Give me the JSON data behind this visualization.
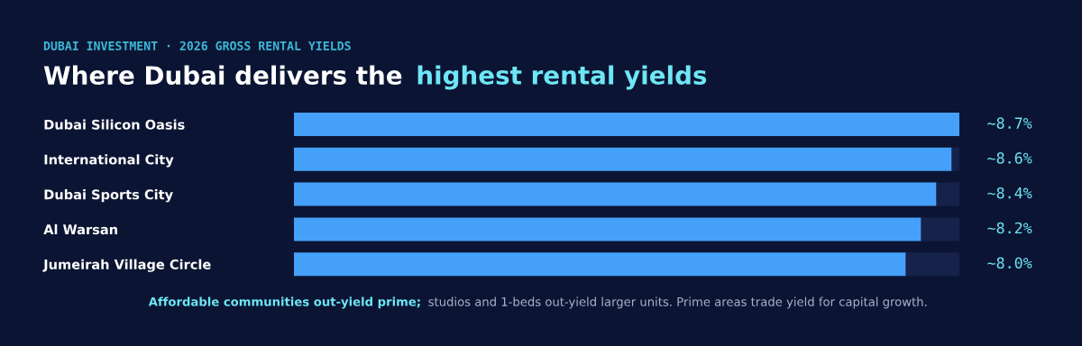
{
  "chart_data": {
    "type": "bar",
    "orientation": "horizontal",
    "stacked": true,
    "subtitle": "DUBAI INVESTMENT · 2026 GROSS RENTAL YIELDS",
    "title": "Where Dubai delivers the highest rental yields",
    "categories": [
      "Dubai Silicon Oasis",
      "International City",
      "Dubai Sports City",
      "Al Warsan",
      "Jumeirah Village Circle"
    ],
    "series": [
      {
        "color": "#45a0fa",
        "values": [
          8.7,
          8.6,
          8.4,
          8.2,
          8.0
        ],
        "value_labels": [
          "~8.7%",
          "~8.6%",
          "~8.4%",
          "~8.2%",
          "~8.0%"
        ]
      },
      {
        "color": "#16224a",
        "values": [
          0,
          0.1,
          0.3,
          0.5,
          0.7
        ]
      }
    ],
    "annotations": [
      "Affordable communities out-yield prime;",
      "studios and 1-beds out-yield larger units. Prime areas trade yield for capital growth."
    ],
    "grid": false,
    "legend": false
  }
}
